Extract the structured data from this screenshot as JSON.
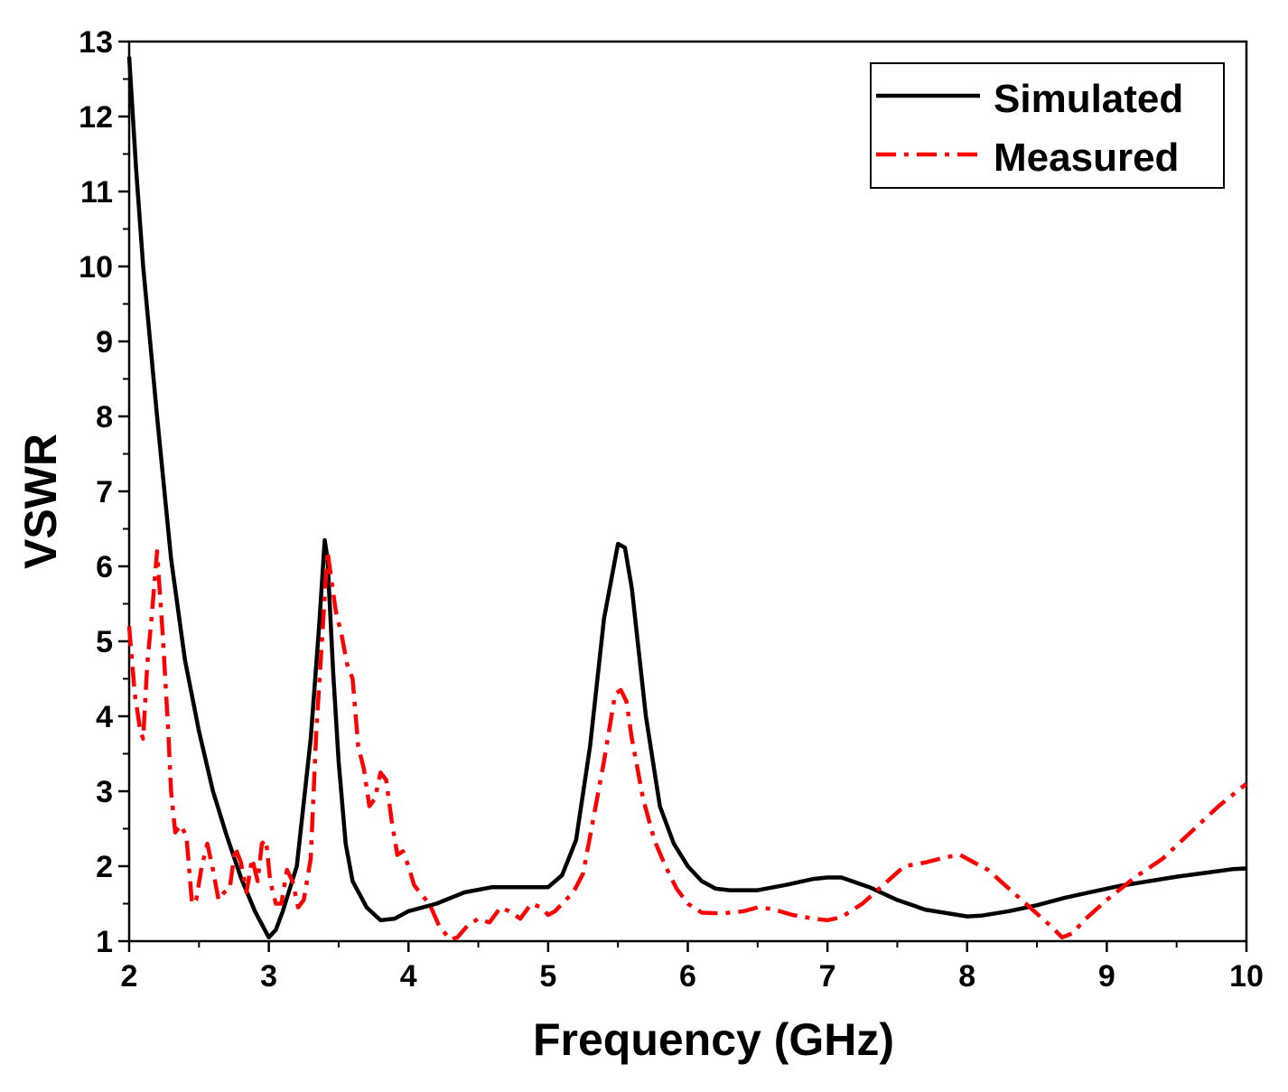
{
  "chart_data": {
    "type": "line",
    "title": "",
    "xlabel": "Frequency (GHz)",
    "ylabel": "VSWR",
    "xlim": [
      2,
      10
    ],
    "ylim": [
      1,
      13
    ],
    "xticks": [
      "2",
      "3",
      "4",
      "5",
      "6",
      "7",
      "8",
      "9",
      "10"
    ],
    "yticks": [
      "1",
      "2",
      "3",
      "4",
      "5",
      "6",
      "7",
      "8",
      "9",
      "10",
      "11",
      "12",
      "13"
    ],
    "grid": false,
    "legend_position": "top-right",
    "series": [
      {
        "name": "Simulated",
        "color": "#000000",
        "style": "solid",
        "x": [
          2.0,
          2.05,
          2.1,
          2.2,
          2.3,
          2.4,
          2.5,
          2.6,
          2.7,
          2.8,
          2.9,
          3.0,
          3.05,
          3.1,
          3.2,
          3.3,
          3.36,
          3.4,
          3.42,
          3.46,
          3.5,
          3.55,
          3.6,
          3.7,
          3.8,
          3.9,
          4.0,
          4.2,
          4.4,
          4.6,
          4.8,
          5.0,
          5.1,
          5.2,
          5.3,
          5.4,
          5.5,
          5.55,
          5.6,
          5.7,
          5.8,
          5.9,
          6.0,
          6.1,
          6.2,
          6.3,
          6.5,
          6.7,
          6.9,
          7.0,
          7.1,
          7.3,
          7.5,
          7.7,
          7.9,
          8.0,
          8.1,
          8.3,
          8.5,
          8.7,
          8.9,
          9.1,
          9.3,
          9.5,
          9.7,
          9.9,
          10.0
        ],
        "y": [
          12.8,
          11.3,
          10.0,
          8.0,
          6.1,
          4.75,
          3.8,
          3.0,
          2.4,
          1.85,
          1.4,
          1.05,
          1.15,
          1.4,
          2.0,
          3.7,
          5.2,
          6.35,
          6.1,
          4.6,
          3.4,
          2.3,
          1.8,
          1.45,
          1.28,
          1.3,
          1.4,
          1.5,
          1.65,
          1.72,
          1.72,
          1.72,
          1.88,
          2.35,
          3.6,
          5.3,
          6.3,
          6.25,
          5.7,
          4.0,
          2.8,
          2.3,
          2.0,
          1.8,
          1.7,
          1.68,
          1.68,
          1.75,
          1.83,
          1.85,
          1.85,
          1.72,
          1.55,
          1.42,
          1.36,
          1.33,
          1.34,
          1.4,
          1.48,
          1.58,
          1.66,
          1.74,
          1.8,
          1.86,
          1.91,
          1.96,
          1.97
        ]
      },
      {
        "name": "Measured",
        "color": "#ff0000",
        "style": "dash-dot",
        "x": [
          2.0,
          2.04,
          2.08,
          2.1,
          2.13,
          2.16,
          2.2,
          2.24,
          2.28,
          2.3,
          2.33,
          2.37,
          2.41,
          2.45,
          2.48,
          2.52,
          2.56,
          2.6,
          2.64,
          2.68,
          2.72,
          2.76,
          2.8,
          2.84,
          2.88,
          2.92,
          2.95,
          2.98,
          3.01,
          3.05,
          3.09,
          3.13,
          3.17,
          3.21,
          3.25,
          3.3,
          3.34,
          3.38,
          3.42,
          3.45,
          3.48,
          3.52,
          3.56,
          3.6,
          3.64,
          3.68,
          3.72,
          3.76,
          3.8,
          3.84,
          3.88,
          3.92,
          3.96,
          4.0,
          4.04,
          4.08,
          4.15,
          4.22,
          4.3,
          4.35,
          4.42,
          4.5,
          4.58,
          4.66,
          4.72,
          4.8,
          4.88,
          4.95,
          5.0,
          5.05,
          5.1,
          5.18,
          5.25,
          5.32,
          5.4,
          5.48,
          5.52,
          5.56,
          5.6,
          5.68,
          5.76,
          5.84,
          5.92,
          6.0,
          6.1,
          6.25,
          6.4,
          6.5,
          6.6,
          6.75,
          6.9,
          7.0,
          7.1,
          7.25,
          7.4,
          7.55,
          7.7,
          7.85,
          7.95,
          8.05,
          8.15,
          8.3,
          8.45,
          8.6,
          8.68,
          8.75,
          8.85,
          9.0,
          9.2,
          9.4,
          9.6,
          9.8,
          10.0
        ],
        "y": [
          5.2,
          4.3,
          3.8,
          3.7,
          4.7,
          5.3,
          6.2,
          5.1,
          3.8,
          3.0,
          2.45,
          2.55,
          2.4,
          1.5,
          1.55,
          2.0,
          2.3,
          1.95,
          1.55,
          1.65,
          1.7,
          2.25,
          2.05,
          1.65,
          2.1,
          1.8,
          2.3,
          2.35,
          1.8,
          1.5,
          1.5,
          1.95,
          1.8,
          1.45,
          1.55,
          2.1,
          3.8,
          5.0,
          6.2,
          5.8,
          5.4,
          5.1,
          4.7,
          4.5,
          3.6,
          3.3,
          2.8,
          2.9,
          3.25,
          3.15,
          2.6,
          2.15,
          2.2,
          2.0,
          1.75,
          1.65,
          1.5,
          1.2,
          1.02,
          1.05,
          1.2,
          1.3,
          1.25,
          1.45,
          1.4,
          1.3,
          1.5,
          1.45,
          1.35,
          1.4,
          1.5,
          1.65,
          1.9,
          2.6,
          3.4,
          4.3,
          4.35,
          4.2,
          3.7,
          2.9,
          2.35,
          2.0,
          1.7,
          1.5,
          1.38,
          1.37,
          1.4,
          1.45,
          1.43,
          1.35,
          1.3,
          1.28,
          1.32,
          1.5,
          1.75,
          2.0,
          2.05,
          2.12,
          2.15,
          2.05,
          1.95,
          1.7,
          1.45,
          1.2,
          1.05,
          1.1,
          1.3,
          1.55,
          1.85,
          2.1,
          2.45,
          2.8,
          3.1
        ]
      }
    ]
  }
}
